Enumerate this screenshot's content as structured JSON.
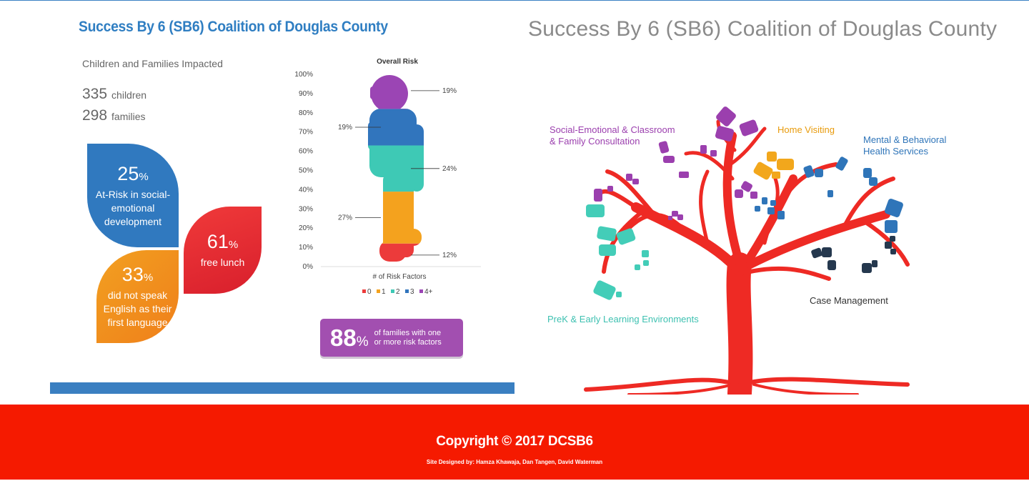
{
  "left": {
    "title": "Success By 6 (SB6) Coalition of Douglas County",
    "impact_heading": "Children and Families Impacted",
    "children_count": "335",
    "children_label": "children",
    "families_count": "298",
    "families_label": "families",
    "leaves": {
      "blue": {
        "value": "25",
        "caption": "At-Risk in social-emotional development",
        "color": "#3079bf"
      },
      "orange": {
        "value": "33",
        "caption": "did not speak English as their first language",
        "color": "#f0901e"
      },
      "red": {
        "value": "61",
        "caption": "free lunch",
        "color": "#e32b33"
      }
    },
    "percent_sign": "%",
    "families_badge": {
      "value": "88",
      "text_line1": "of families with one",
      "text_line2": "or more risk factors"
    }
  },
  "chart_data": {
    "type": "stacked-bar",
    "title": "Overall Risk",
    "xlabel": "# of Risk Factors",
    "ylim": [
      0,
      100
    ],
    "y_ticks": [
      "0%",
      "10%",
      "20%",
      "30%",
      "40%",
      "50%",
      "60%",
      "70%",
      "80%",
      "90%",
      "100%"
    ],
    "categories": [
      "0",
      "1",
      "2",
      "3",
      "4+"
    ],
    "values": [
      12,
      27,
      24,
      19,
      19
    ],
    "value_labels": [
      "12%",
      "27%",
      "24%",
      "19%",
      "19%"
    ],
    "colors": [
      "#ec3b3b",
      "#f4a21e",
      "#3ec9b5",
      "#3175bd",
      "#9b45b4"
    ],
    "legend_position": "bottom"
  },
  "right": {
    "title": "Success By 6 (SB6) Coalition of Douglas County",
    "labels": {
      "social_line1": "Social-Emotional & Classroom",
      "social_line2": "& Family Consultation",
      "home": "Home Visiting",
      "mental_line1": "Mental & Behavioral",
      "mental_line2": "Health Services",
      "case": "Case Management",
      "prek": "PreK & Early Learning Environments"
    },
    "colors": {
      "trunk": "#ee2a24",
      "social": "#9b3fae",
      "home": "#f2a71c",
      "mental": "#2f75b9",
      "case": "#25384e",
      "prek": "#43cdb8"
    }
  },
  "footer": {
    "copyright": "Copyright © 2017 DCSB6",
    "credits": "Site Designed by: Hamza Khawaja, Dan Tangen, David Waterman"
  }
}
